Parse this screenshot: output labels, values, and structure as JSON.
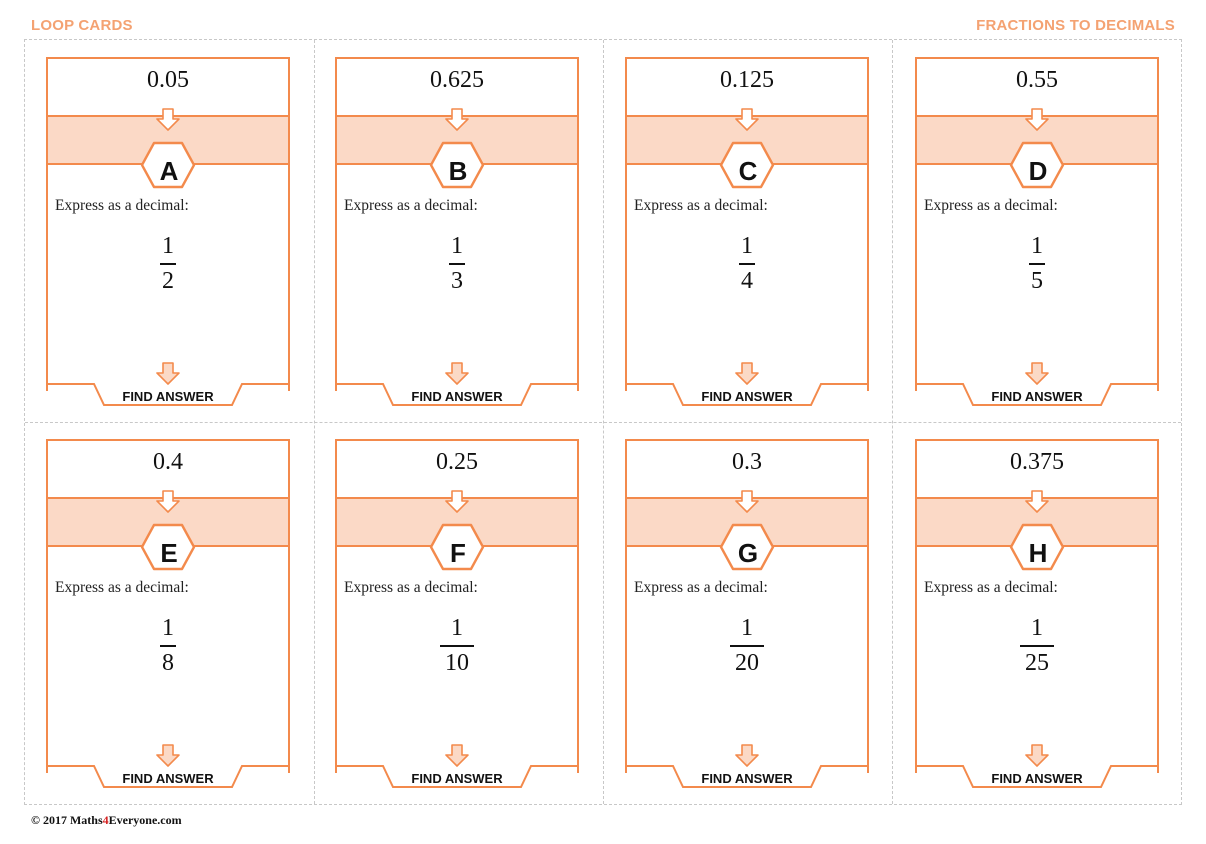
{
  "header": {
    "left_title": "LOOP CARDS",
    "right_title": "FRACTIONS TO DECIMALS"
  },
  "colors": {
    "accent_orange": "#f4a272",
    "band_fill": "#fbd9c6",
    "frame_stroke": "#f38a4c"
  },
  "cards": [
    {
      "answer": "0.05",
      "letter": "A",
      "prompt": "Express as a decimal:",
      "numerator": "1",
      "denominator": "2",
      "footer": "FIND ANSWER"
    },
    {
      "answer": "0.625",
      "letter": "B",
      "prompt": "Express as a decimal:",
      "numerator": "1",
      "denominator": "3",
      "footer": "FIND ANSWER"
    },
    {
      "answer": "0.125",
      "letter": "C",
      "prompt": "Express as a decimal:",
      "numerator": "1",
      "denominator": "4",
      "footer": "FIND ANSWER"
    },
    {
      "answer": "0.55",
      "letter": "D",
      "prompt": "Express as a decimal:",
      "numerator": "1",
      "denominator": "5",
      "footer": "FIND ANSWER"
    },
    {
      "answer": "0.4",
      "letter": "E",
      "prompt": "Express as a decimal:",
      "numerator": "1",
      "denominator": "8",
      "footer": "FIND ANSWER"
    },
    {
      "answer": "0.25",
      "letter": "F",
      "prompt": "Express as a decimal:",
      "numerator": "1",
      "denominator": "10",
      "footer": "FIND ANSWER"
    },
    {
      "answer": "0.3",
      "letter": "G",
      "prompt": "Express as a decimal:",
      "numerator": "1",
      "denominator": "20",
      "footer": "FIND ANSWER"
    },
    {
      "answer": "0.375",
      "letter": "H",
      "prompt": "Express as a decimal:",
      "numerator": "1",
      "denominator": "25",
      "footer": "FIND ANSWER"
    }
  ],
  "footer": {
    "copyright_prefix": "© 2017 Maths",
    "copyright_four": "4",
    "copyright_suffix": "Everyone.com"
  }
}
